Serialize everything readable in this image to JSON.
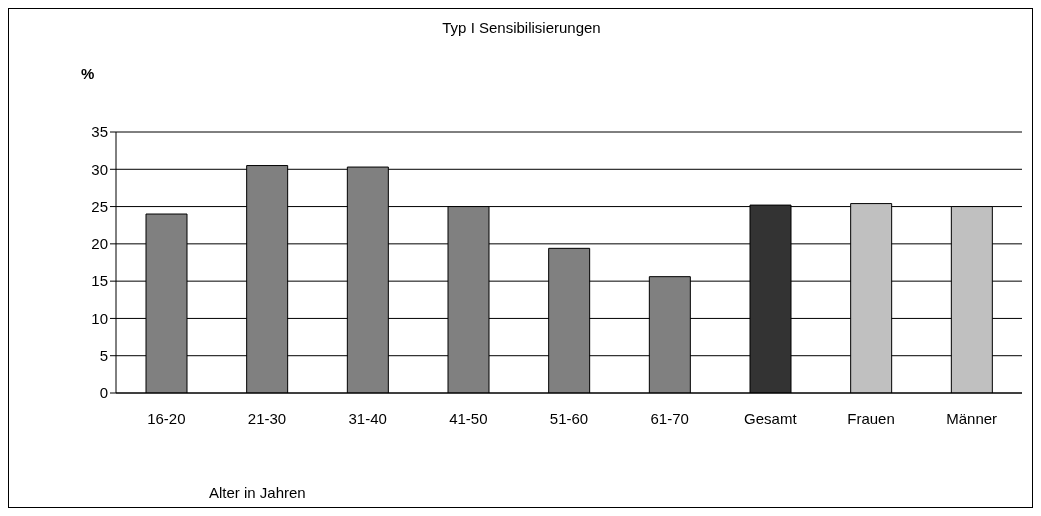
{
  "chart_data": {
    "type": "bar",
    "title": "Typ I Sensibilisierungen",
    "ylabel": "%",
    "xlabel": "Alter in Jahren",
    "categories": [
      "16-20",
      "21-30",
      "31-40",
      "41-50",
      "51-60",
      "61-70",
      "Gesamt",
      "Frauen",
      "Männer"
    ],
    "values": [
      24.0,
      30.5,
      30.3,
      25.0,
      19.4,
      15.6,
      25.2,
      25.4,
      25.0
    ],
    "colors": [
      "#808080",
      "#808080",
      "#808080",
      "#808080",
      "#808080",
      "#808080",
      "#333333",
      "#c0c0c0",
      "#c0c0c0"
    ],
    "ylim": [
      0,
      35
    ],
    "yticks": [
      0,
      5,
      10,
      15,
      20,
      25,
      30,
      35
    ],
    "grid": "y",
    "legend": false
  }
}
